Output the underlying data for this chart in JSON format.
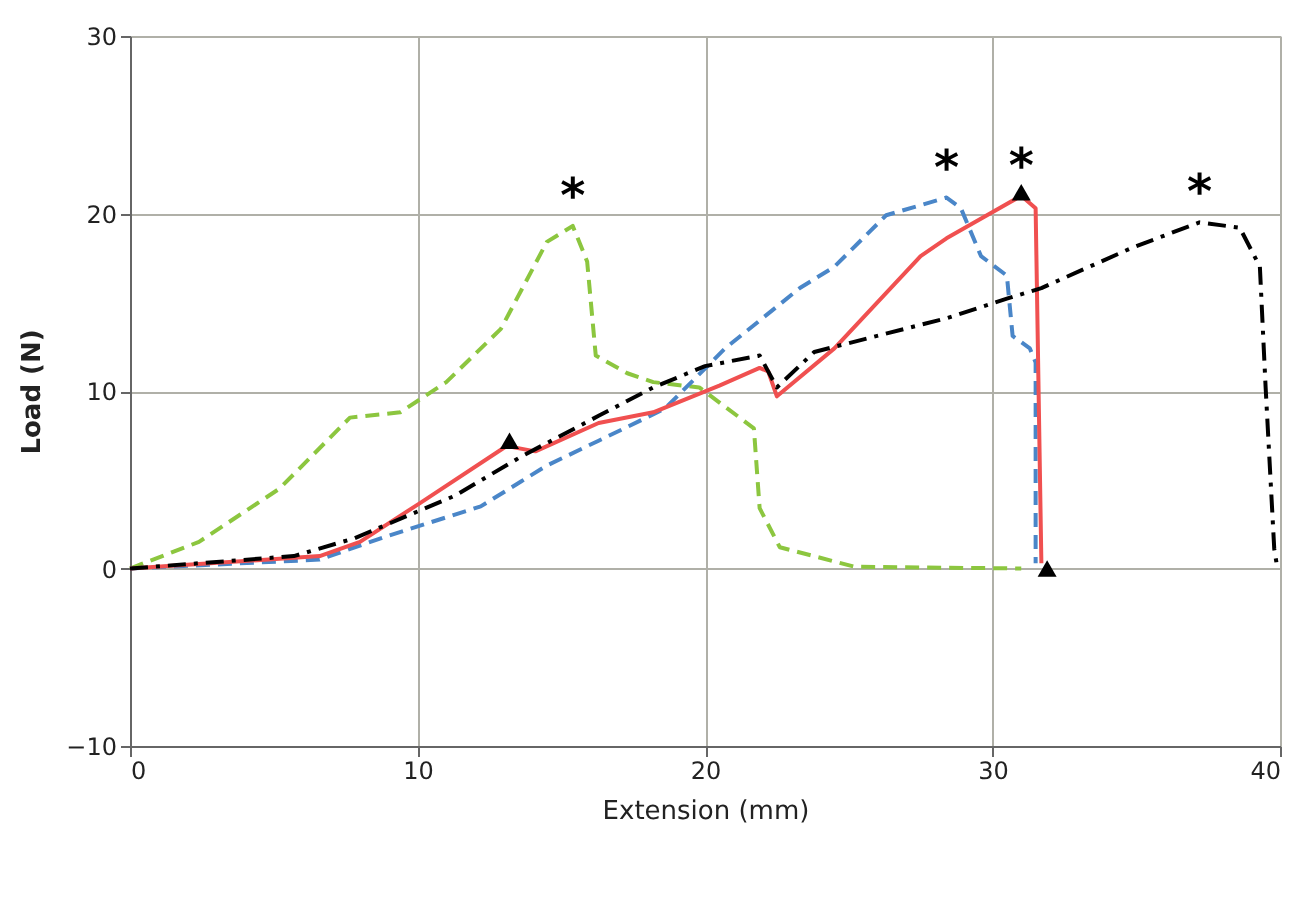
{
  "chart_data": {
    "type": "line",
    "xlabel": "Extension (mm)",
    "ylabel": "Load (N)",
    "xlim": [
      0,
      40
    ],
    "ylim": [
      -10,
      30
    ],
    "xticks": [
      0,
      10,
      20,
      30,
      40
    ],
    "yticks": [
      -10,
      0,
      10,
      20,
      30
    ],
    "grid": true,
    "series": [
      {
        "color": "#8cc63f",
        "line_style": "dashed",
        "x": [
          0,
          2.4,
          5.2,
          7.65,
          9.4,
          11,
          12.9,
          14.5,
          15.4,
          15.9,
          16.2,
          17.3,
          18.2,
          19.8,
          21.7,
          21.9,
          22.6,
          25.2,
          31
        ],
        "values": [
          0,
          1.5,
          4.5,
          8.5,
          8.8,
          10.5,
          13.5,
          18.4,
          19.3,
          17.3,
          12,
          11,
          10.5,
          10.2,
          7.9,
          3.4,
          1.2,
          0.1,
          0
        ]
      },
      {
        "color": "#4a86c8",
        "line_style": "dashed",
        "x": [
          0,
          6.6,
          8.9,
          12.2,
          13.6,
          14.5,
          16.3,
          18.6,
          20.7,
          23.3,
          24.5,
          26.3,
          28.4,
          28.9,
          29.6,
          30.5,
          30.7,
          31.3,
          31.5,
          31.5
        ],
        "values": [
          0,
          0.5,
          1.8,
          3.5,
          4.9,
          5.8,
          7.2,
          9,
          12.4,
          15.8,
          17,
          19.9,
          20.9,
          20.3,
          17.6,
          16.5,
          13.1,
          12.4,
          11.6,
          0.3
        ]
      },
      {
        "color": "#f05050",
        "line_style": "solid",
        "x": [
          0,
          6.6,
          8,
          10.1,
          13.1,
          14.1,
          16.3,
          18.2,
          20.5,
          21.9,
          22.2,
          22.5,
          24.5,
          27.5,
          28.4,
          31,
          31.5,
          31.7
        ],
        "values": [
          0,
          0.7,
          1.5,
          3.7,
          6.9,
          6.6,
          8.2,
          8.8,
          10.3,
          11.3,
          11.1,
          9.7,
          12.4,
          17.6,
          18.6,
          21,
          20.3,
          0.3
        ]
      },
      {
        "color": "#000000",
        "line_style": "dashdot",
        "x": [
          0,
          5.7,
          7.8,
          11.3,
          13.6,
          16.3,
          18.2,
          20,
          21.9,
          22.5,
          23.8,
          28.4,
          30.5,
          31.7,
          34.9,
          37.2,
          38.6,
          39.3,
          39.5,
          39.8,
          39.9
        ],
        "values": [
          0,
          0.7,
          1.7,
          4.1,
          6.3,
          8.6,
          10.2,
          11.4,
          12,
          10.2,
          12.2,
          14.1,
          15.2,
          15.8,
          18.1,
          19.5,
          19.2,
          17,
          10.2,
          1.1,
          0.1
        ]
      },
      {
        "type": "scatter",
        "marker": "triangle",
        "color": "#000000",
        "x": [
          13.2,
          31,
          31.9
        ],
        "values": [
          7.2,
          21.2,
          0
        ]
      }
    ],
    "annotations": [
      {
        "text": "*",
        "x": 15.4,
        "y": 19.3
      },
      {
        "text": "*",
        "x": 28.4,
        "y": 20.9
      },
      {
        "text": "*",
        "x": 31,
        "y": 21
      },
      {
        "text": "*",
        "x": 37.2,
        "y": 19.5
      }
    ]
  }
}
